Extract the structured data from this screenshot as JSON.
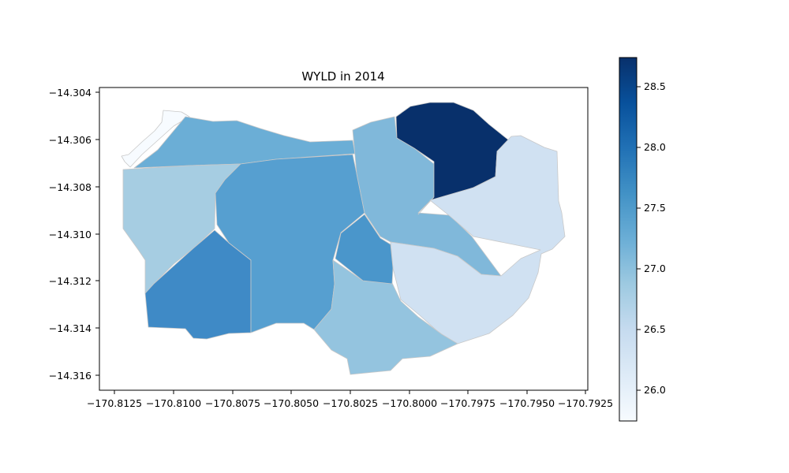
{
  "chart_data": {
    "type": "choropleth",
    "title": "WYLD in 2014",
    "xlabel": "",
    "ylabel": "",
    "xlim": [
      -170.8133,
      -170.7929
    ],
    "ylim": [
      -14.3167,
      -14.3037
    ],
    "x_ticks": [
      -170.8125,
      -170.81,
      -170.8075,
      -170.805,
      -170.8025,
      -170.8,
      -170.7975,
      -170.795,
      -170.7925
    ],
    "x_tick_labels": [
      "−170.8125",
      "−170.8100",
      "−170.8075",
      "−170.8050",
      "−170.8025",
      "−170.8000",
      "−170.7975",
      "−170.7950",
      "−170.7925"
    ],
    "y_ticks": [
      -14.304,
      -14.306,
      -14.308,
      -14.31,
      -14.312,
      -14.314,
      -14.316
    ],
    "y_tick_labels": [
      "−14.304",
      "−14.306",
      "−14.308",
      "−14.310",
      "−14.312",
      "−14.314",
      "−14.316"
    ],
    "grid": false,
    "colormap": "Blues",
    "colorbar": {
      "vmin": 25.75,
      "vmax": 28.75,
      "ticks": [
        26.0,
        26.5,
        27.0,
        27.5,
        28.0,
        28.5
      ],
      "tick_labels": [
        "26.0",
        "26.5",
        "27.0",
        "27.5",
        "28.0",
        "28.5"
      ]
    },
    "regions": [
      {
        "value": 25.75,
        "color": "#f7fbff"
      },
      {
        "value": 27.1,
        "color": "#6baed6"
      },
      {
        "value": 26.8,
        "color": "#a6cde2"
      },
      {
        "value": 27.6,
        "color": "#3f8ac6"
      },
      {
        "value": 27.45,
        "color": "#569fd0"
      },
      {
        "value": 27.05,
        "color": "#80b8da"
      },
      {
        "value": 28.75,
        "color": "#08306b"
      },
      {
        "value": 26.35,
        "color": "#d0e1f2"
      },
      {
        "value": 26.95,
        "color": "#94c4df"
      },
      {
        "value": 27.55,
        "color": "#4a96cb"
      }
    ]
  }
}
